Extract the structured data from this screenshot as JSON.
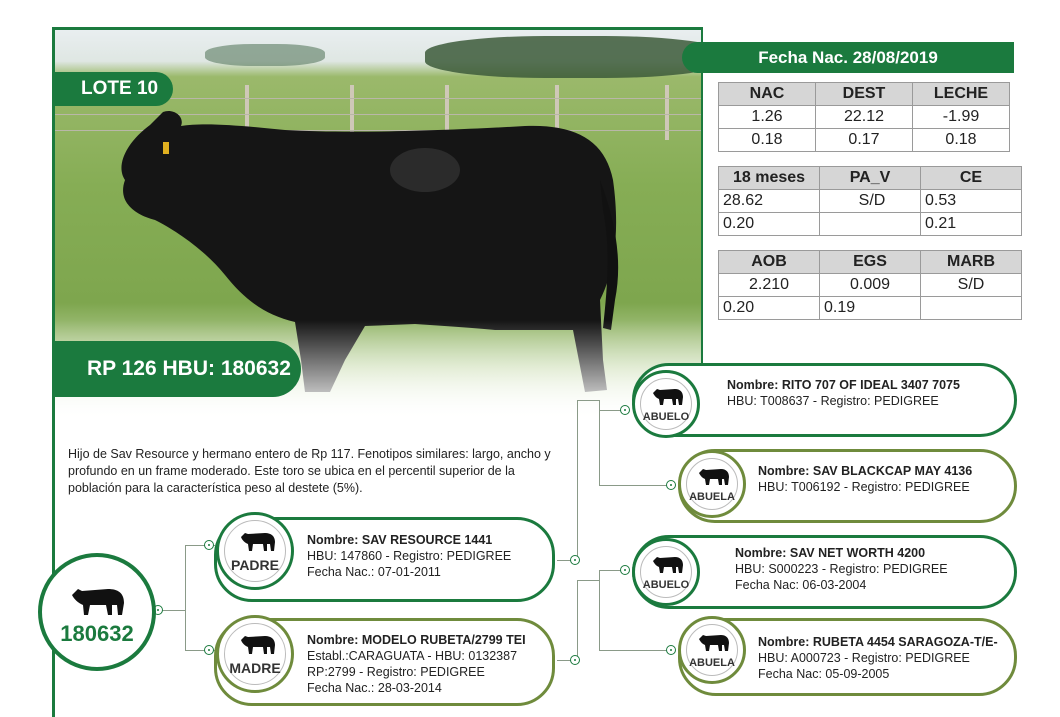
{
  "lote": "LOTE 10",
  "rp_hbu": "RP 126 HBU: 180632",
  "fecha_nac": "Fecha Nac. 28/08/2019",
  "epd_tables": [
    {
      "headers": [
        "NAC",
        "DEST",
        "LECHE"
      ],
      "row1": [
        "1.26",
        "22.12",
        "-1.99"
      ],
      "row2": [
        "0.18",
        "0.17",
        "0.18"
      ]
    },
    {
      "headers": [
        "18 meses",
        "PA_V",
        "CE"
      ],
      "row1": [
        "28.62",
        "S/D",
        "0.53"
      ],
      "row2": [
        "0.20",
        "",
        "0.21"
      ]
    },
    {
      "headers": [
        "AOB",
        "EGS",
        "MARB"
      ],
      "row1": [
        "2.210",
        "0.009",
        "S/D"
      ],
      "row2": [
        "0.20",
        "0.19",
        ""
      ]
    }
  ],
  "description": "Hijo de Sav Resource y hermano entero de Rp 117.  Fenotipos similares: largo, ancho y profundo en un frame moderado. Este toro se ubica en el percentil superior de la población para la característica peso al destete (5%).",
  "animal_id": "180632",
  "padre": {
    "role": "PADRE",
    "name": "Nombre: SAV RESOURCE 1441",
    "line1": "HBU: 147860 - Registro: PEDIGREE",
    "line2": "Fecha Nac.: 07-01-2011"
  },
  "madre": {
    "role": "MADRE",
    "name": "Nombre: MODELO RUBETA/2799 TEI",
    "line1": "Establ.:CARAGUATA - HBU: 0132387",
    "line2": "RP:2799 - Registro: PEDIGREE",
    "line3": "Fecha Nac.: 28-03-2014"
  },
  "abuelo_p": {
    "role": "ABUELO",
    "name": "Nombre: RITO 707 OF IDEAL 3407 7075",
    "line1": "HBU: T008637 - Registro: PEDIGREE"
  },
  "abuela_p": {
    "role": "ABUELA",
    "name": "Nombre: SAV BLACKCAP MAY 4136",
    "line1": "HBU: T006192 - Registro: PEDIGREE"
  },
  "abuelo_m": {
    "role": "ABUELO",
    "name": "Nombre: SAV NET WORTH 4200",
    "line1": "HBU: S000223 - Registro: PEDIGREE",
    "line2": "Fecha Nac: 06-03-2004"
  },
  "abuela_m": {
    "role": "ABUELA",
    "name": "Nombre: RUBETA 4454 SARAGOZA-T/E-",
    "line1": "HBU: A000723 - Registro: PEDIGREE",
    "line2": "Fecha Nac: 05-09-2005"
  },
  "colors": {
    "green": "#1b7a3e",
    "olive": "#6f8b3c"
  }
}
